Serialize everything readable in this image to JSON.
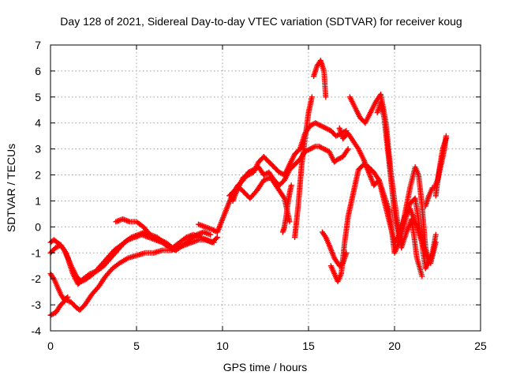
{
  "chart_data": {
    "type": "line",
    "title": "Day 128 of 2021, Sidereal Day-to-day VTEC variation (SDTVAR) for receiver koug",
    "xlabel": "GPS time / hours",
    "ylabel": "SDTVAR / TECUs",
    "xlim": [
      0,
      25
    ],
    "ylim": [
      -4,
      7
    ],
    "x_ticks": [
      0,
      5,
      10,
      15,
      20,
      25
    ],
    "y_ticks": [
      -4,
      -3,
      -2,
      -1,
      0,
      1,
      2,
      3,
      4,
      5,
      6,
      7
    ],
    "grid": true,
    "series_color": "#ff0000",
    "marker": "plus",
    "series": [
      {
        "x": [
          0.0,
          0.3,
          0.6,
          0.9,
          1.2,
          1.5,
          1.7,
          2.0,
          2.4,
          2.8,
          3.2,
          3.6,
          4.0,
          4.5,
          5.0,
          5.5,
          6.0,
          6.5,
          7.0,
          7.4,
          7.8,
          8.2,
          8.6,
          9.0,
          9.4,
          9.7
        ],
        "y": [
          -3.4,
          -3.3,
          -3.0,
          -2.8,
          -2.9,
          -3.1,
          -3.2,
          -3.0,
          -2.6,
          -2.3,
          -1.9,
          -1.6,
          -1.4,
          -1.2,
          -1.1,
          -1.0,
          -1.0,
          -0.9,
          -0.9,
          -0.8,
          -0.7,
          -0.6,
          -0.5,
          -0.5,
          -0.6,
          -0.4
        ]
      },
      {
        "x": [
          0.0,
          0.3,
          0.6,
          0.9,
          1.2,
          1.5,
          1.8,
          2.1,
          2.5,
          2.9,
          3.3,
          3.7,
          4.1,
          4.5,
          4.9,
          5.3,
          5.7,
          6.1,
          6.5,
          6.9,
          7.3,
          7.7,
          8.1,
          8.5,
          8.9,
          9.3
        ],
        "y": [
          -1.0,
          -0.8,
          -0.7,
          -1.0,
          -1.5,
          -1.9,
          -2.1,
          -2.0,
          -1.8,
          -1.5,
          -1.2,
          -0.9,
          -0.7,
          -0.5,
          -0.4,
          -0.3,
          -0.4,
          -0.5,
          -0.6,
          -0.8,
          -0.9,
          -0.7,
          -0.5,
          -0.3,
          -0.2,
          -0.3
        ]
      },
      {
        "x": [
          0.0,
          0.2,
          0.4,
          0.6,
          0.8,
          1.0,
          1.3,
          1.6,
          1.9,
          2.3,
          2.7,
          3.1,
          3.5,
          3.9,
          4.3,
          4.7,
          5.1,
          5.5,
          5.9,
          6.3,
          6.7,
          7.1,
          7.5,
          7.9,
          8.3,
          8.7,
          9.1,
          9.5
        ],
        "y": [
          -0.6,
          -0.5,
          -0.6,
          -0.7,
          -0.9,
          -1.2,
          -1.8,
          -2.2,
          -2.0,
          -1.8,
          -1.7,
          -1.5,
          -1.2,
          -0.9,
          -0.6,
          -0.4,
          -0.3,
          -0.2,
          -0.4,
          -0.5,
          -0.6,
          -0.8,
          -0.6,
          -0.4,
          -0.3,
          -0.4,
          -0.5,
          -0.6
        ]
      },
      {
        "x": [
          0.0,
          0.2,
          0.4,
          0.6,
          0.8,
          1.0
        ],
        "y": [
          -1.8,
          -2.0,
          -2.3,
          -2.6,
          -2.8,
          -2.7
        ]
      },
      {
        "x": [
          3.8,
          4.2,
          4.6,
          5.0,
          5.4,
          5.8,
          6.2,
          6.6,
          7.0,
          7.3
        ],
        "y": [
          0.2,
          0.3,
          0.2,
          0.2,
          0.0,
          -0.3,
          -0.4,
          -0.6,
          -0.8,
          -0.9
        ]
      },
      {
        "x": [
          8.6,
          9.0,
          9.4,
          9.7,
          10.0,
          10.3,
          10.6,
          10.9,
          11.2,
          11.5,
          11.8,
          12.1,
          12.4,
          12.7,
          13.0,
          13.3,
          13.6,
          13.9,
          14.2,
          14.5,
          14.8,
          15.1,
          15.4,
          15.6,
          15.9,
          16.2,
          16.5,
          16.7,
          17.0,
          17.3
        ],
        "y": [
          0.1,
          0.0,
          -0.1,
          -0.2,
          0.3,
          0.8,
          1.3,
          1.6,
          1.8,
          2.1,
          2.2,
          2.3,
          2.0,
          2.1,
          1.8,
          1.6,
          1.8,
          2.2,
          2.4,
          2.6,
          2.9,
          3.0,
          3.1,
          3.1,
          3.0,
          2.9,
          2.5,
          2.6,
          2.7,
          3.0
        ]
      },
      {
        "x": [
          10.6,
          10.9,
          11.2,
          11.5,
          11.8,
          12.1,
          12.4,
          12.7,
          13.0,
          13.3,
          13.6,
          13.9,
          14.2,
          14.5,
          14.8,
          15.1,
          15.4,
          15.7,
          16.0,
          16.3,
          16.6,
          16.9,
          17.2
        ],
        "y": [
          1.0,
          1.5,
          1.9,
          2.0,
          2.1,
          2.5,
          2.7,
          2.5,
          2.3,
          2.1,
          2.0,
          2.4,
          2.8,
          3.0,
          3.6,
          3.9,
          4.0,
          3.9,
          3.8,
          3.7,
          3.5,
          3.6,
          3.7
        ]
      },
      {
        "x": [
          10.4,
          10.7,
          11.0,
          11.3,
          11.6,
          12.0,
          12.4,
          12.8,
          13.2,
          13.6,
          13.9
        ],
        "y": [
          1.2,
          1.4,
          1.5,
          1.3,
          1.1,
          1.4,
          1.8,
          1.9,
          1.5,
          1.1,
          0.2
        ]
      },
      {
        "x": [
          13.5,
          13.6,
          13.7,
          13.8,
          13.9,
          14.0
        ],
        "y": [
          -0.2,
          0.0,
          0.4,
          0.9,
          1.3,
          1.6
        ]
      },
      {
        "x": [
          14.2,
          14.3,
          14.4,
          14.5,
          14.6,
          14.8,
          15.0,
          15.2
        ],
        "y": [
          -0.4,
          0.2,
          0.8,
          1.6,
          2.4,
          3.4,
          4.4,
          5.0
        ]
      },
      {
        "x": [
          15.3,
          15.5,
          15.7,
          15.9,
          16.0
        ],
        "y": [
          5.8,
          6.2,
          6.4,
          6.0,
          5.0
        ]
      },
      {
        "x": [
          15.8,
          16.0,
          16.2,
          16.5,
          16.8,
          17.0,
          17.2
        ],
        "y": [
          -0.2,
          -0.4,
          -0.7,
          -1.2,
          -1.5,
          -1.4,
          -1.0
        ]
      },
      {
        "x": [
          16.3,
          16.5,
          16.7,
          16.9,
          17.1,
          17.3,
          17.5,
          17.7,
          17.9,
          18.2,
          18.5,
          18.8,
          19.1,
          19.4,
          19.7,
          20.0,
          20.3,
          20.6,
          20.9,
          21.2,
          21.5,
          21.8,
          22.1,
          22.4
        ],
        "y": [
          -1.5,
          -1.8,
          -2.1,
          -1.8,
          -0.6,
          0.4,
          1.0,
          1.6,
          2.2,
          2.4,
          2.3,
          2.1,
          1.8,
          1.0,
          0.2,
          -0.6,
          -0.3,
          0.4,
          0.7,
          0.2,
          -0.4,
          -1.0,
          -1.4,
          -0.6
        ]
      },
      {
        "x": [
          16.8,
          17.0,
          17.3,
          17.6,
          17.9,
          18.2,
          18.5,
          18.8,
          19.1,
          19.4,
          19.7,
          20.0,
          20.3,
          20.6,
          20.9,
          21.2,
          21.5,
          21.8,
          22.1
        ],
        "y": [
          3.8,
          3.4,
          3.6,
          3.3,
          3.0,
          2.6,
          2.1,
          1.6,
          1.8,
          1.2,
          0.6,
          -1.0,
          -0.5,
          0.2,
          0.9,
          1.1,
          -0.2,
          -1.6,
          -1.2
        ]
      },
      {
        "x": [
          17.4,
          17.7,
          18.0,
          18.3,
          18.6,
          18.9,
          19.2,
          19.5,
          19.8,
          20.1,
          20.4,
          20.7,
          21.0,
          21.3,
          21.6
        ],
        "y": [
          5.0,
          4.6,
          4.2,
          4.0,
          4.4,
          4.8,
          5.1,
          4.0,
          2.0,
          0.5,
          -0.8,
          -0.2,
          0.3,
          -1.2,
          -1.9
        ]
      },
      {
        "x": [
          19.0,
          19.2,
          19.4,
          19.6,
          19.8,
          20.0,
          20.3,
          20.6,
          20.9,
          21.2,
          21.4,
          21.6,
          21.8,
          22.0,
          22.2,
          22.4
        ],
        "y": [
          4.4,
          4.8,
          4.2,
          3.0,
          1.8,
          0.5,
          -0.5,
          0.5,
          1.5,
          2.3,
          2.0,
          0.8,
          -0.8,
          -1.4,
          -1.0,
          -0.3
        ]
      },
      {
        "x": [
          21.8,
          22.0,
          22.2
        ],
        "y": [
          0.8,
          1.2,
          1.5
        ]
      },
      {
        "x": [
          22.4,
          22.6,
          22.8,
          23.0
        ],
        "y": [
          1.2,
          2.2,
          3.0,
          3.4
        ]
      },
      {
        "x": [
          22.3,
          22.5,
          22.7,
          22.9,
          23.0
        ],
        "y": [
          1.5,
          1.8,
          2.4,
          3.0,
          3.5
        ]
      }
    ]
  }
}
